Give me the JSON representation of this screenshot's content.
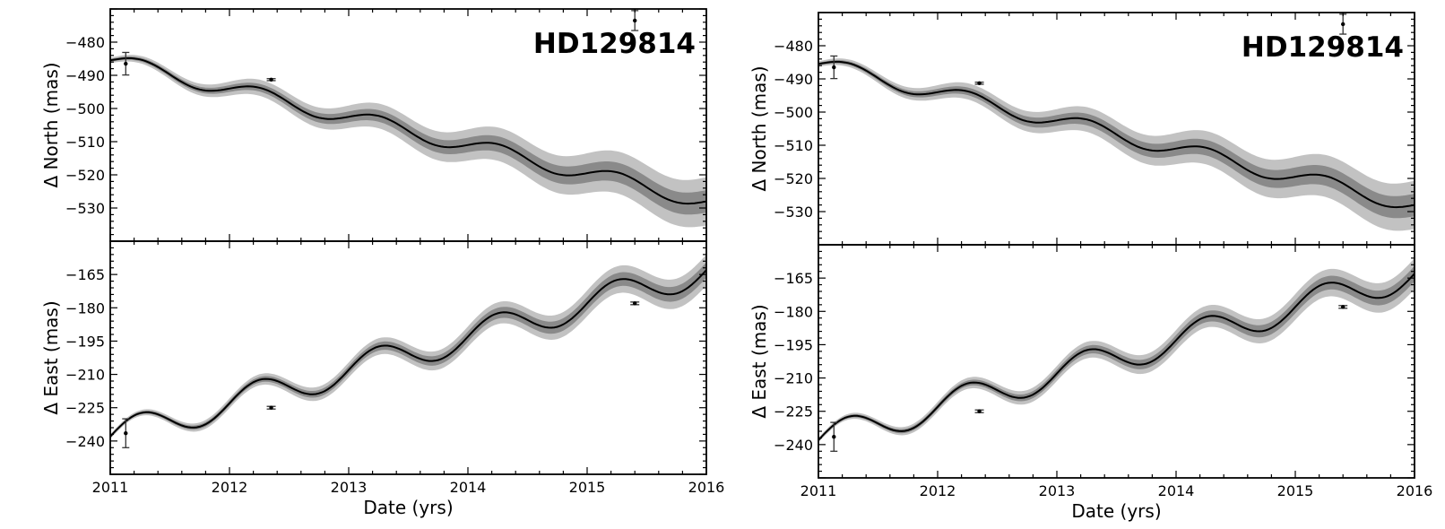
{
  "star_label": "HD129814",
  "colors": {
    "band_outer": "#c2c2c2",
    "band_inner": "#8a8a8a",
    "model_line": "#000000",
    "data_point": "#000000"
  },
  "chart_data": [
    {
      "type": "line",
      "panel": "left-top",
      "title": "HD129814",
      "ylabel": "Δ North (mas)",
      "xlabel": "",
      "xlim": [
        2011,
        2016
      ],
      "ylim": [
        -540,
        -470
      ],
      "yticks": [
        -480,
        -490,
        -500,
        -510,
        -520,
        -530
      ],
      "xticks": [
        2011,
        2012,
        2013,
        2014,
        2015,
        2016
      ],
      "show_xtick_labels": false,
      "model": {
        "t0": 2011,
        "y0": -485.5,
        "slope": -8.5,
        "amplitude": 2.4,
        "period": 1,
        "sigma_inner_0": 0.4,
        "sigma_inner_rate": 0.6,
        "sigma_outer_0": 0.8,
        "sigma_outer_rate": 1.3
      },
      "points": [
        {
          "x": 2011.13,
          "y": -486.5,
          "yerr": 3.4
        },
        {
          "x": 2012.35,
          "y": -491.3,
          "yerr": 0.3
        },
        {
          "x": 2015.4,
          "y": -473.5,
          "yerr": 3.0
        }
      ]
    },
    {
      "type": "line",
      "panel": "left-bottom",
      "ylabel": "Δ East (mas)",
      "xlabel": "Date (yrs)",
      "xlim": [
        2011,
        2016
      ],
      "ylim": [
        -255,
        -150
      ],
      "yticks": [
        -165,
        -180,
        -195,
        -210,
        -225,
        -240
      ],
      "xticks": [
        2011,
        2012,
        2013,
        2014,
        2015,
        2016
      ],
      "show_xtick_labels": true,
      "model": {
        "t0": 2011,
        "y0": -238,
        "slope": 15,
        "amplitude": 6.8,
        "period": 1,
        "sigma_inner_0": 0.5,
        "sigma_inner_rate": 0.6,
        "sigma_outer_0": 1.0,
        "sigma_outer_rate": 1.2
      },
      "points": [
        {
          "x": 2011.13,
          "y": -236.5,
          "yerr": 6.5
        },
        {
          "x": 2012.35,
          "y": -225.0,
          "yerr": 0.6
        },
        {
          "x": 2015.4,
          "y": -178.0,
          "yerr": 0.6
        }
      ]
    },
    {
      "type": "line",
      "panel": "right-top",
      "title": "HD129814",
      "ylabel": "Δ North (mas)",
      "xlabel": "",
      "xlim": [
        2011,
        2016
      ],
      "ylim": [
        -540,
        -470
      ],
      "yticks": [
        -480,
        -490,
        -500,
        -510,
        -520,
        -530
      ],
      "xticks": [
        2011,
        2012,
        2013,
        2014,
        2015,
        2016
      ],
      "show_xtick_labels": false,
      "model": {
        "t0": 2011,
        "y0": -485.5,
        "slope": -8.5,
        "amplitude": 2.4,
        "period": 1,
        "sigma_inner_0": 0.4,
        "sigma_inner_rate": 0.6,
        "sigma_outer_0": 0.8,
        "sigma_outer_rate": 1.3
      },
      "points": [
        {
          "x": 2011.13,
          "y": -486.5,
          "yerr": 3.4
        },
        {
          "x": 2012.35,
          "y": -491.3,
          "yerr": 0.3
        },
        {
          "x": 2015.4,
          "y": -473.5,
          "yerr": 3.0
        }
      ]
    },
    {
      "type": "line",
      "panel": "right-bottom",
      "ylabel": "Δ East (mas)",
      "xlabel": "Date (yrs)",
      "xlim": [
        2011,
        2016
      ],
      "ylim": [
        -255,
        -150
      ],
      "yticks": [
        -165,
        -180,
        -195,
        -210,
        -225,
        -240
      ],
      "xticks": [
        2011,
        2012,
        2013,
        2014,
        2015,
        2016
      ],
      "show_xtick_labels": true,
      "model": {
        "t0": 2011,
        "y0": -238,
        "slope": 15,
        "amplitude": 6.8,
        "period": 1,
        "sigma_inner_0": 0.5,
        "sigma_inner_rate": 0.6,
        "sigma_outer_0": 1.0,
        "sigma_outer_rate": 1.2
      },
      "points": [
        {
          "x": 2011.13,
          "y": -236.5,
          "yerr": 6.5
        },
        {
          "x": 2012.35,
          "y": -225.0,
          "yerr": 0.6
        },
        {
          "x": 2015.4,
          "y": -178.0,
          "yerr": 0.6
        }
      ]
    }
  ]
}
